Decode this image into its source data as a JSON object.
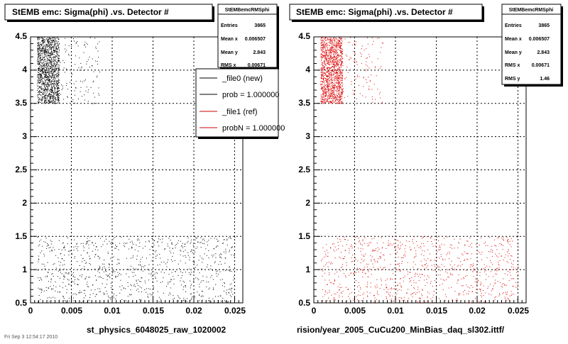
{
  "chart_data": [
    {
      "type": "scatter",
      "title": "StEMB emc: Sigma(phi) .vs. Detector #",
      "xlabel": "st_physics_6048025_raw_1020002",
      "ylabel": "",
      "xlim": [
        0,
        0.026
      ],
      "ylim": [
        0.5,
        4.5
      ],
      "x_ticks": [
        "0",
        "0.005",
        "0.01",
        "0.015",
        "0.02",
        "0.025"
      ],
      "y_ticks": [
        "0.5",
        "1",
        "1.5",
        "2",
        "2.5",
        "3",
        "3.5",
        "4",
        "4.5"
      ],
      "grid": true,
      "marker_color": "#000000",
      "series": [
        {
          "x_range": [
            0.0008,
            0.0035
          ],
          "y_range": [
            3.5,
            4.5
          ],
          "density": "dense"
        },
        {
          "x_range": [
            0.0035,
            0.0085
          ],
          "y_range": [
            3.5,
            4.5
          ],
          "density": "sparse"
        },
        {
          "x_range": [
            0.0008,
            0.025
          ],
          "y_range": [
            0.5,
            1.5
          ],
          "density": "scattered"
        }
      ],
      "stats": {
        "title": "StEMBemcRMSphi",
        "rows": [
          {
            "label": "Entries",
            "value": "3865"
          },
          {
            "label": "Mean x",
            "value": "0.006507"
          },
          {
            "label": "Mean y",
            "value": "2.843"
          },
          {
            "label": "RMS x",
            "value": "0.00671"
          }
        ]
      },
      "legend": {
        "placement": "top-right",
        "entries": [
          {
            "label": "_file0 (new)",
            "color": "#000000"
          },
          {
            "label": "prob = 1.000000",
            "color": "#000000"
          },
          {
            "label": "_file1 (ref)",
            "color": "#cc0000"
          },
          {
            "label": "probN = 1.000000",
            "color": "#cc0000"
          }
        ]
      }
    },
    {
      "type": "scatter",
      "title": "StEMB emc: Sigma(phi) .vs. Detector #",
      "xlabel": "rision/year_2005_CuCu200_MinBias_daq_sl302.ittf/",
      "ylabel": "",
      "xlim": [
        0,
        0.026
      ],
      "ylim": [
        0.5,
        4.5
      ],
      "x_ticks": [
        "0",
        "0.005",
        "0.01",
        "0.015",
        "0.02",
        "0.025"
      ],
      "y_ticks": [
        "0.5",
        "1",
        "1.5",
        "2",
        "2.5",
        "3",
        "3.5",
        "4",
        "4.5"
      ],
      "grid": true,
      "marker_color": "#dd0000",
      "series": [
        {
          "x_range": [
            0.0008,
            0.0035
          ],
          "y_range": [
            3.5,
            4.5
          ],
          "density": "dense"
        },
        {
          "x_range": [
            0.0035,
            0.0085
          ],
          "y_range": [
            3.5,
            4.5
          ],
          "density": "sparse"
        },
        {
          "x_range": [
            0.0008,
            0.025
          ],
          "y_range": [
            0.5,
            1.5
          ],
          "density": "scattered"
        }
      ],
      "stats": {
        "title": "StEMBemcRMSphi",
        "rows": [
          {
            "label": "Entries",
            "value": "3865"
          },
          {
            "label": "Mean x",
            "value": "0.006507"
          },
          {
            "label": "Mean y",
            "value": "2.843"
          },
          {
            "label": "RMS x",
            "value": "0.00671"
          },
          {
            "label": "RMS y",
            "value": "1.46"
          }
        ]
      }
    }
  ],
  "footer_text": "Fri Sep 3 12:54:17 2010"
}
